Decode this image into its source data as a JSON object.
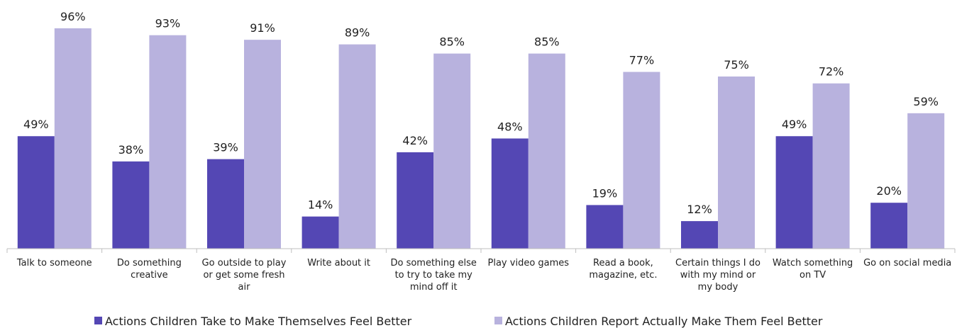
{
  "chart_data": {
    "type": "bar",
    "categories": [
      [
        "Talk to someone"
      ],
      [
        "Do something",
        "creative"
      ],
      [
        "Go outside to play",
        "or get some fresh",
        "air"
      ],
      [
        "Write about it"
      ],
      [
        "Do something else",
        "to try to take my",
        "mind off it"
      ],
      [
        "Play video games"
      ],
      [
        "Read a book,",
        "magazine, etc."
      ],
      [
        "Certain things I do",
        "with my mind or",
        "my body"
      ],
      [
        "Watch something",
        "on TV"
      ],
      [
        "Go on social media"
      ]
    ],
    "series": [
      {
        "name": "Actions Children Take to Make Themselves Feel Better",
        "color": "#5447b4",
        "values": [
          49,
          38,
          39,
          14,
          42,
          48,
          19,
          12,
          49,
          20
        ],
        "labels": [
          "49%",
          "38%",
          "39%",
          "14%",
          "42%",
          "48%",
          "19%",
          "12%",
          "49%",
          "20%"
        ]
      },
      {
        "name": "Actions Children Report Actually Make Them Feel Better",
        "color": "#b8b2de",
        "values": [
          96,
          93,
          91,
          89,
          85,
          85,
          77,
          75,
          72,
          59
        ],
        "labels": [
          "96%",
          "93%",
          "91%",
          "89%",
          "85%",
          "85%",
          "77%",
          "75%",
          "72%",
          "59%"
        ]
      }
    ],
    "ylim": [
      0,
      100
    ],
    "grid": false,
    "legend": "bottom"
  }
}
